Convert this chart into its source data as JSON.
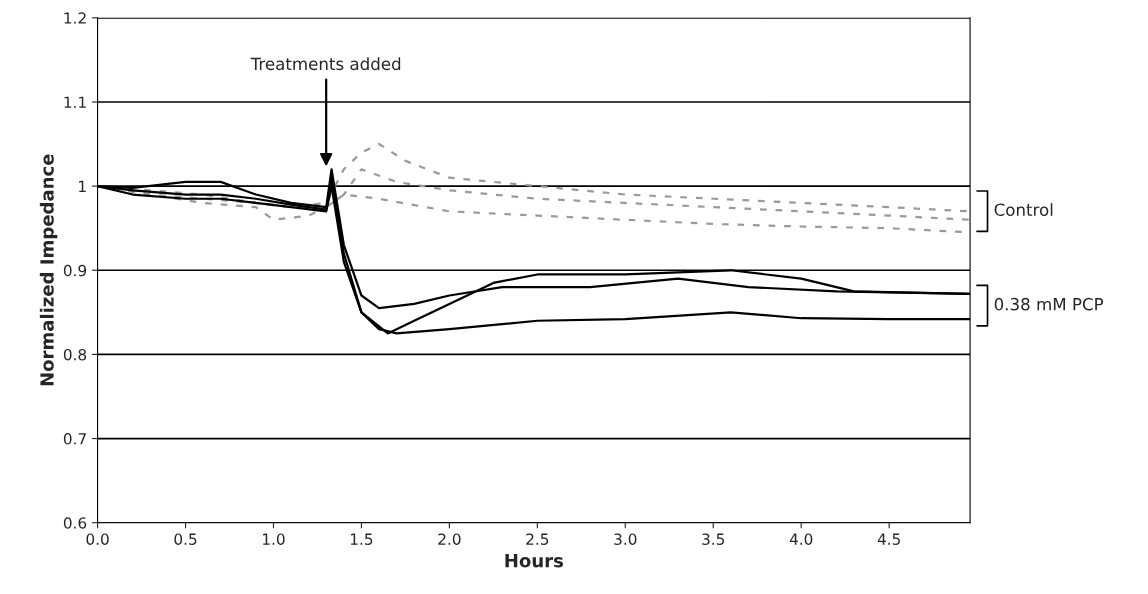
{
  "chart_data": {
    "type": "line",
    "xlabel": "Hours",
    "ylabel": "Normalized Impedance",
    "xlim": [
      0,
      4.96
    ],
    "ylim": [
      0.6,
      1.2
    ],
    "xticks": [
      {
        "value": 0,
        "label": "0.0"
      },
      0.5,
      {
        "value": 1,
        "label": "1.0"
      },
      1.5,
      {
        "value": 2,
        "label": "2.0"
      },
      2.5,
      {
        "value": 3,
        "label": "3.0"
      },
      3.5,
      {
        "value": 4,
        "label": "4.0"
      },
      4.5
    ],
    "yticks": [
      0.6,
      0.7,
      0.8,
      0.9,
      1,
      1.1,
      1.2
    ],
    "grid": "y",
    "legend": false,
    "marker": "none",
    "series": [
      {
        "color": "#9a9a9a",
        "line_style": "dashed",
        "x": [
          0,
          0.3,
          0.6,
          0.9,
          1.1,
          1.3,
          1.4,
          1.5,
          1.6,
          1.75,
          2.0,
          2.5,
          3.0,
          3.5,
          4.0,
          4.5,
          4.96
        ],
        "values": [
          1.0,
          0.995,
          0.99,
          0.98,
          0.975,
          0.98,
          1.02,
          1.04,
          1.05,
          1.03,
          1.01,
          1.0,
          0.99,
          0.985,
          0.98,
          0.975,
          0.97
        ]
      },
      {
        "color": "#9a9a9a",
        "line_style": "dashed",
        "x": [
          0,
          0.3,
          0.6,
          0.9,
          1.1,
          1.3,
          1.4,
          1.5,
          1.7,
          2.0,
          2.5,
          3.0,
          3.5,
          4.0,
          4.5,
          4.96
        ],
        "values": [
          1.0,
          0.99,
          0.985,
          0.98,
          0.975,
          0.975,
          0.99,
          1.02,
          1.005,
          0.995,
          0.985,
          0.98,
          0.975,
          0.97,
          0.965,
          0.96
        ]
      },
      {
        "color": "#9a9a9a",
        "line_style": "dashed",
        "x": [
          0,
          0.3,
          0.6,
          0.9,
          1.0,
          1.2,
          1.3,
          1.4,
          1.6,
          2.0,
          2.5,
          3.0,
          3.5,
          4.0,
          4.5,
          4.96
        ],
        "values": [
          1.0,
          0.99,
          0.98,
          0.975,
          0.96,
          0.965,
          0.975,
          0.99,
          0.985,
          0.97,
          0.965,
          0.96,
          0.955,
          0.952,
          0.95,
          0.945
        ]
      },
      {
        "color": "#000000",
        "line_style": "solid",
        "x": [
          0,
          0.2,
          0.5,
          0.7,
          0.9,
          1.1,
          1.3,
          1.33,
          1.4,
          1.5,
          1.6,
          1.8,
          2.0,
          2.3,
          2.8,
          3.3,
          3.7,
          4.2,
          4.96
        ],
        "values": [
          1.0,
          0.998,
          1.005,
          1.005,
          0.99,
          0.98,
          0.975,
          1.02,
          0.93,
          0.87,
          0.855,
          0.86,
          0.87,
          0.88,
          0.88,
          0.89,
          0.88,
          0.875,
          0.872
        ]
      },
      {
        "color": "#000000",
        "line_style": "solid",
        "x": [
          0,
          0.2,
          0.5,
          0.7,
          0.9,
          1.1,
          1.3,
          1.33,
          1.4,
          1.5,
          1.65,
          1.8,
          2.0,
          2.25,
          2.5,
          3.0,
          3.6,
          4.0,
          4.3,
          4.96
        ],
        "values": [
          1.0,
          0.995,
          0.99,
          0.99,
          0.985,
          0.978,
          0.972,
          1.01,
          0.92,
          0.85,
          0.825,
          0.84,
          0.86,
          0.885,
          0.895,
          0.895,
          0.9,
          0.89,
          0.875,
          0.872
        ]
      },
      {
        "color": "#000000",
        "line_style": "solid",
        "x": [
          0,
          0.2,
          0.5,
          0.7,
          0.9,
          1.1,
          1.3,
          1.33,
          1.4,
          1.5,
          1.6,
          1.7,
          2.0,
          2.5,
          3.0,
          3.6,
          4.0,
          4.5,
          4.96
        ],
        "values": [
          1.0,
          0.99,
          0.985,
          0.985,
          0.98,
          0.975,
          0.97,
          1.0,
          0.91,
          0.85,
          0.83,
          0.825,
          0.83,
          0.84,
          0.842,
          0.85,
          0.843,
          0.842,
          0.842
        ]
      }
    ],
    "annotations": [
      "Treatments added",
      "Control",
      "0.38 mM PCP"
    ]
  }
}
